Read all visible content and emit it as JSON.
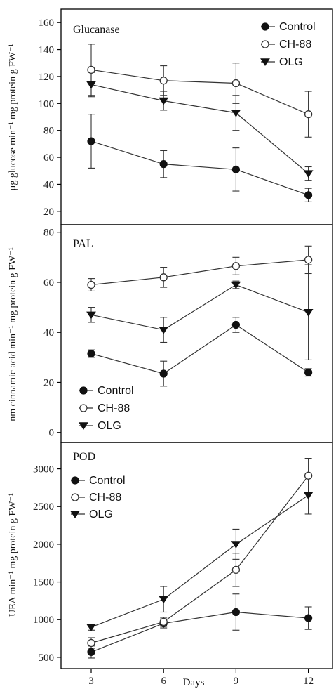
{
  "chart_data": [
    {
      "type": "line",
      "title": "Glucanase",
      "ylabel": "µg glucose min⁻¹ mg protein g FW⁻¹",
      "xlabel": "",
      "x": [
        3,
        6,
        9,
        12
      ],
      "ylim": [
        10,
        170
      ],
      "yticks": [
        20,
        40,
        60,
        80,
        100,
        120,
        140,
        160
      ],
      "legend_position": "top-right",
      "series": [
        {
          "name": "Control",
          "marker": "filled-circle",
          "values": [
            72,
            55,
            51,
            32
          ],
          "errors": [
            20,
            10,
            16,
            5
          ]
        },
        {
          "name": "CH-88",
          "marker": "open-circle",
          "values": [
            125,
            117,
            115,
            92
          ],
          "errors": [
            19,
            11,
            15,
            17
          ]
        },
        {
          "name": "OLG",
          "marker": "filled-triangle-down",
          "values": [
            114,
            102,
            93,
            48
          ],
          "errors": [
            9,
            7,
            13,
            5
          ]
        }
      ]
    },
    {
      "type": "line",
      "title": "PAL",
      "ylabel": "nm cinnamic acid min⁻¹ mg protein g FW⁻¹",
      "xlabel": "",
      "x": [
        3,
        6,
        9,
        12
      ],
      "ylim": [
        -4,
        83
      ],
      "yticks": [
        0,
        20,
        40,
        60,
        80
      ],
      "legend_position": "bottom-left",
      "series": [
        {
          "name": "Control",
          "marker": "filled-circle",
          "values": [
            31.5,
            23.5,
            43,
            24
          ],
          "errors": [
            1.5,
            5,
            3,
            1.5
          ]
        },
        {
          "name": "CH-88",
          "marker": "open-circle",
          "values": [
            59,
            62,
            66.5,
            69
          ],
          "errors": [
            2.5,
            4,
            3.5,
            5.5
          ]
        },
        {
          "name": "OLG",
          "marker": "filled-triangle-down",
          "values": [
            47,
            41,
            59,
            48
          ],
          "errors": [
            3,
            5,
            1.5,
            19
          ]
        }
      ]
    },
    {
      "type": "line",
      "title": "POD",
      "ylabel": "UEA min⁻¹ mg protein g FW⁻¹",
      "xlabel": "Days",
      "x": [
        3,
        6,
        9,
        12
      ],
      "xticks": [
        3,
        6,
        9,
        12
      ],
      "ylim": [
        350,
        3350
      ],
      "yticks": [
        500,
        1000,
        1500,
        2000,
        2500,
        3000
      ],
      "legend_position": "top-left",
      "series": [
        {
          "name": "Control",
          "marker": "filled-circle",
          "values": [
            570,
            950,
            1100,
            1020
          ],
          "errors": [
            80,
            60,
            240,
            150
          ]
        },
        {
          "name": "CH-88",
          "marker": "open-circle",
          "values": [
            690,
            970,
            1660,
            2910
          ],
          "errors": [
            70,
            60,
            220,
            230
          ]
        },
        {
          "name": "OLG",
          "marker": "filled-triangle-down",
          "values": [
            900,
            1270,
            2000,
            2650
          ],
          "errors": [
            40,
            170,
            200,
            250
          ]
        }
      ]
    }
  ],
  "colors": {
    "ink": "#111111",
    "line": "#333333",
    "background": "#ffffff"
  }
}
